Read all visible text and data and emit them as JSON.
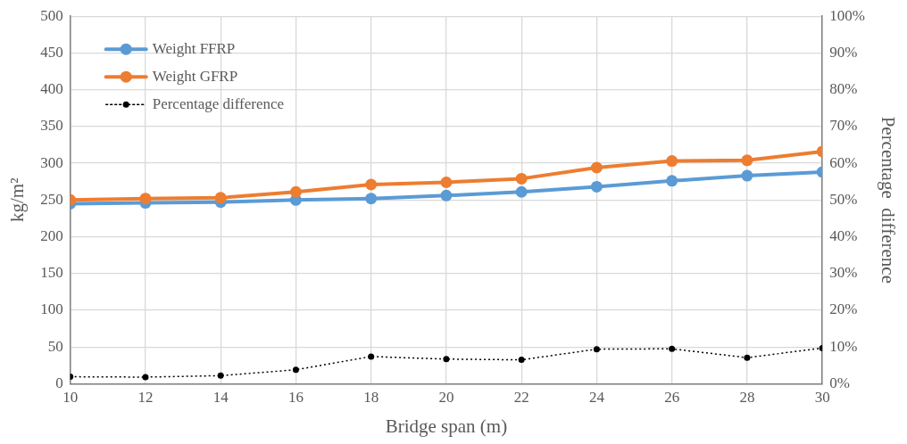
{
  "chart_data": {
    "type": "line",
    "xlabel": "Bridge span (m)",
    "ylabel": "kg/m²",
    "y2label": "Percentage  difference",
    "x": [
      10,
      12,
      14,
      16,
      18,
      20,
      22,
      24,
      26,
      28,
      30
    ],
    "series": [
      {
        "name": "Weight FFRP",
        "color": "#5b9bd5",
        "values": [
          245,
          246,
          247,
          250,
          252,
          256,
          261,
          268,
          276,
          283,
          288
        ],
        "marker": "circle",
        "line_style": "solid"
      },
      {
        "name": "Weight GFRP",
        "color": "#ed7d31",
        "values": [
          250,
          252,
          253,
          261,
          271,
          274,
          279,
          294,
          303,
          304,
          316
        ],
        "marker": "circle",
        "line_style": "solid"
      },
      {
        "name": "Percentage difference",
        "color": "#000000",
        "axis": "y2",
        "values": [
          1.9,
          1.8,
          2.2,
          3.8,
          7.4,
          6.7,
          6.5,
          9.4,
          9.5,
          7.1,
          9.7
        ],
        "marker": "circle",
        "line_style": "dotted"
      }
    ],
    "xlim": [
      10,
      30
    ],
    "xticks": [
      10,
      12,
      14,
      16,
      18,
      20,
      22,
      24,
      26,
      28,
      30
    ],
    "ylim": [
      0,
      500
    ],
    "yticks": [
      0,
      50,
      100,
      150,
      200,
      250,
      300,
      350,
      400,
      450,
      500
    ],
    "y2lim": [
      0,
      100
    ],
    "y2ticks": [
      {
        "value": 0,
        "label": "0%"
      },
      {
        "value": 10,
        "label": "10%"
      },
      {
        "value": 20,
        "label": "20%"
      },
      {
        "value": 30,
        "label": "30%"
      },
      {
        "value": 40,
        "label": "40%"
      },
      {
        "value": 50,
        "label": "50%"
      },
      {
        "value": 60,
        "label": "60%"
      },
      {
        "value": 70,
        "label": "70%"
      },
      {
        "value": 80,
        "label": "80%"
      },
      {
        "value": 90,
        "label": "90%"
      },
      {
        "value": 100,
        "label": "100%"
      }
    ],
    "grid": true,
    "legend": "top left"
  }
}
